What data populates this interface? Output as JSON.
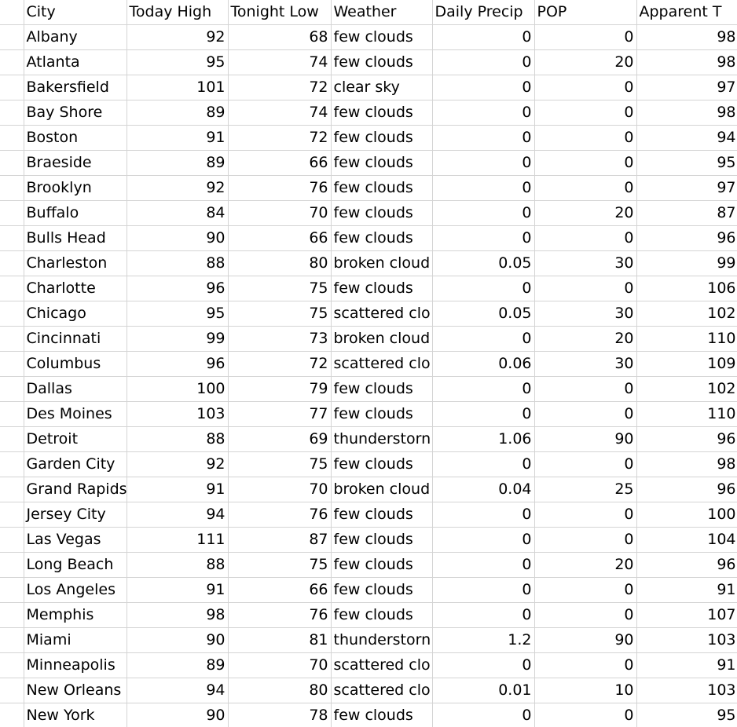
{
  "columns": [
    "City",
    "Today High",
    "Tonight Low",
    "Weather",
    "Daily Precip",
    "POP",
    "Apparent T"
  ],
  "rows": [
    {
      "city": "Albany",
      "high": "92",
      "low": "68",
      "weather": "few clouds",
      "precip": "0",
      "pop": "0",
      "apparent": "98"
    },
    {
      "city": "Atlanta",
      "high": "95",
      "low": "74",
      "weather": "few clouds",
      "precip": "0",
      "pop": "20",
      "apparent": "98"
    },
    {
      "city": "Bakersfield",
      "high": "101",
      "low": "72",
      "weather": "clear sky",
      "precip": "0",
      "pop": "0",
      "apparent": "97"
    },
    {
      "city": "Bay Shore",
      "high": "89",
      "low": "74",
      "weather": "few clouds",
      "precip": "0",
      "pop": "0",
      "apparent": "98"
    },
    {
      "city": "Boston",
      "high": "91",
      "low": "72",
      "weather": "few clouds",
      "precip": "0",
      "pop": "0",
      "apparent": "94"
    },
    {
      "city": "Braeside",
      "high": "89",
      "low": "66",
      "weather": "few clouds",
      "precip": "0",
      "pop": "0",
      "apparent": "95"
    },
    {
      "city": "Brooklyn",
      "high": "92",
      "low": "76",
      "weather": "few clouds",
      "precip": "0",
      "pop": "0",
      "apparent": "97"
    },
    {
      "city": "Buffalo",
      "high": "84",
      "low": "70",
      "weather": "few clouds",
      "precip": "0",
      "pop": "20",
      "apparent": "87"
    },
    {
      "city": "Bulls Head",
      "high": "90",
      "low": "66",
      "weather": "few clouds",
      "precip": "0",
      "pop": "0",
      "apparent": "96"
    },
    {
      "city": "Charleston",
      "high": "88",
      "low": "80",
      "weather": "broken cloud",
      "precip": "0.05",
      "pop": "30",
      "apparent": "99"
    },
    {
      "city": "Charlotte",
      "high": "96",
      "low": "75",
      "weather": "few clouds",
      "precip": "0",
      "pop": "0",
      "apparent": "106"
    },
    {
      "city": "Chicago",
      "high": "95",
      "low": "75",
      "weather": "scattered clo",
      "precip": "0.05",
      "pop": "30",
      "apparent": "102"
    },
    {
      "city": "Cincinnati",
      "high": "99",
      "low": "73",
      "weather": "broken cloud",
      "precip": "0",
      "pop": "20",
      "apparent": "110"
    },
    {
      "city": "Columbus",
      "high": "96",
      "low": "72",
      "weather": "scattered clo",
      "precip": "0.06",
      "pop": "30",
      "apparent": "109"
    },
    {
      "city": "Dallas",
      "high": "100",
      "low": "79",
      "weather": "few clouds",
      "precip": "0",
      "pop": "0",
      "apparent": "102"
    },
    {
      "city": "Des Moines",
      "high": "103",
      "low": "77",
      "weather": "few clouds",
      "precip": "0",
      "pop": "0",
      "apparent": "110"
    },
    {
      "city": "Detroit",
      "high": "88",
      "low": "69",
      "weather": "thunderstorn",
      "precip": "1.06",
      "pop": "90",
      "apparent": "96"
    },
    {
      "city": "Garden City",
      "high": "92",
      "low": "75",
      "weather": "few clouds",
      "precip": "0",
      "pop": "0",
      "apparent": "98"
    },
    {
      "city": "Grand Rapids",
      "high": "91",
      "low": "70",
      "weather": "broken cloud",
      "precip": "0.04",
      "pop": "25",
      "apparent": "96"
    },
    {
      "city": "Jersey City",
      "high": "94",
      "low": "76",
      "weather": "few clouds",
      "precip": "0",
      "pop": "0",
      "apparent": "100"
    },
    {
      "city": "Las Vegas",
      "high": "111",
      "low": "87",
      "weather": "few clouds",
      "precip": "0",
      "pop": "0",
      "apparent": "104"
    },
    {
      "city": "Long Beach",
      "high": "88",
      "low": "75",
      "weather": "few clouds",
      "precip": "0",
      "pop": "20",
      "apparent": "96"
    },
    {
      "city": "Los Angeles",
      "high": "91",
      "low": "66",
      "weather": "few clouds",
      "precip": "0",
      "pop": "0",
      "apparent": "91"
    },
    {
      "city": "Memphis",
      "high": "98",
      "low": "76",
      "weather": "few clouds",
      "precip": "0",
      "pop": "0",
      "apparent": "107"
    },
    {
      "city": "Miami",
      "high": "90",
      "low": "81",
      "weather": "thunderstorn",
      "precip": "1.2",
      "pop": "90",
      "apparent": "103"
    },
    {
      "city": "Minneapolis",
      "high": "89",
      "low": "70",
      "weather": "scattered clo",
      "precip": "0",
      "pop": "0",
      "apparent": "91"
    },
    {
      "city": "New Orleans",
      "high": "94",
      "low": "80",
      "weather": "scattered clo",
      "precip": "0.01",
      "pop": "10",
      "apparent": "103"
    },
    {
      "city": "New York",
      "high": "90",
      "low": "78",
      "weather": "few clouds",
      "precip": "0",
      "pop": "0",
      "apparent": "95"
    }
  ]
}
